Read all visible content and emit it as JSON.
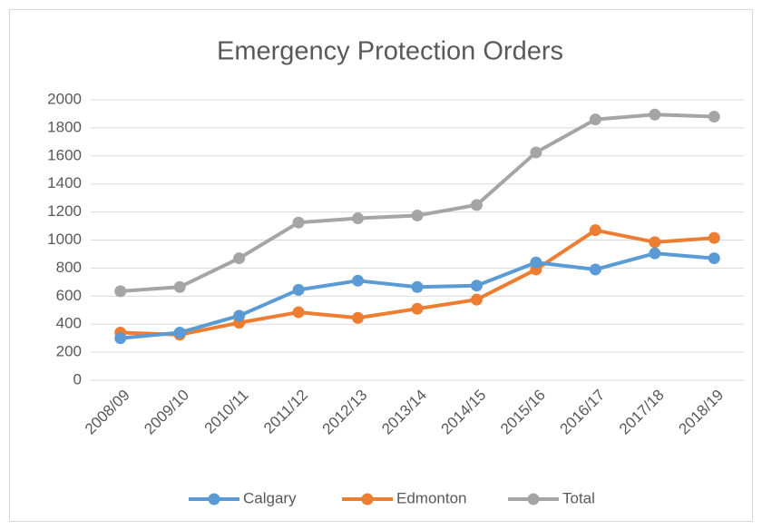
{
  "chart_data": {
    "type": "line",
    "title": "Emergency Protection Orders",
    "categories": [
      "2008/09",
      "2009/10",
      "2010/11",
      "2011/12",
      "2012/13",
      "2013/14",
      "2014/15",
      "2015/16",
      "2016/17",
      "2017/18",
      "2018/19"
    ],
    "series": [
      {
        "name": "Calgary",
        "color": "#5b9bd5",
        "values": [
          300,
          340,
          460,
          645,
          710,
          665,
          675,
          840,
          790,
          905,
          870
        ]
      },
      {
        "name": "Edmonton",
        "color": "#ed7d31",
        "values": [
          340,
          325,
          410,
          485,
          445,
          510,
          575,
          790,
          1070,
          985,
          1015
        ]
      },
      {
        "name": "Total",
        "color": "#a5a5a5",
        "values": [
          635,
          665,
          870,
          1125,
          1155,
          1175,
          1250,
          1625,
          1860,
          1895,
          1880
        ]
      }
    ],
    "ylim": [
      0,
      2000
    ],
    "yticks": [
      0,
      200,
      400,
      600,
      800,
      1000,
      1200,
      1400,
      1600,
      1800,
      2000
    ],
    "grid": true,
    "legend": "bottom"
  }
}
